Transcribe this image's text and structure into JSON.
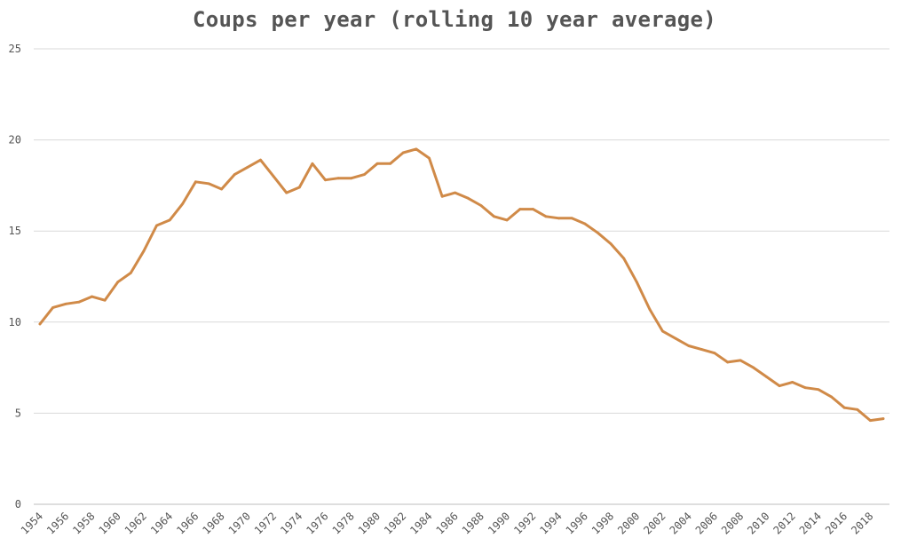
{
  "chart_data": {
    "type": "line",
    "title": "Coups per year (rolling 10 year average)",
    "xlabel": "",
    "ylabel": "",
    "ylim": [
      0,
      25
    ],
    "yticks": [
      0,
      5,
      10,
      15,
      20,
      25
    ],
    "grid": true,
    "legend": "none",
    "color": "#d08a48",
    "x": [
      1954,
      1955,
      1956,
      1957,
      1958,
      1959,
      1960,
      1961,
      1962,
      1963,
      1964,
      1965,
      1966,
      1967,
      1968,
      1969,
      1970,
      1971,
      1972,
      1973,
      1974,
      1975,
      1976,
      1977,
      1978,
      1979,
      1980,
      1981,
      1982,
      1983,
      1984,
      1985,
      1986,
      1987,
      1988,
      1989,
      1990,
      1991,
      1992,
      1993,
      1994,
      1995,
      1996,
      1997,
      1998,
      1999,
      2000,
      2001,
      2002,
      2003,
      2004,
      2005,
      2006,
      2007,
      2008,
      2009,
      2010,
      2011,
      2012,
      2013,
      2014,
      2015,
      2016,
      2017,
      2018,
      2019
    ],
    "xtick_labels": [
      "1954",
      "1956",
      "1958",
      "1960",
      "1962",
      "1964",
      "1966",
      "1968",
      "1970",
      "1972",
      "1974",
      "1976",
      "1978",
      "1980",
      "1982",
      "1984",
      "1986",
      "1988",
      "1990",
      "1992",
      "1994",
      "1996",
      "1998",
      "2000",
      "2002",
      "2004",
      "2006",
      "2008",
      "2010",
      "2012",
      "2014",
      "2016",
      "2018"
    ],
    "series": [
      {
        "values": [
          9.9,
          10.8,
          11.0,
          11.1,
          11.4,
          11.2,
          12.2,
          12.7,
          13.9,
          15.3,
          15.6,
          16.5,
          17.7,
          17.6,
          17.3,
          18.1,
          18.5,
          18.9,
          18.0,
          17.1,
          17.4,
          18.7,
          17.8,
          17.9,
          17.9,
          18.1,
          18.7,
          18.7,
          19.3,
          19.5,
          19.0,
          16.9,
          17.1,
          16.8,
          16.4,
          15.8,
          15.6,
          16.2,
          16.2,
          15.8,
          15.7,
          15.7,
          15.4,
          14.9,
          14.3,
          13.5,
          12.2,
          10.7,
          9.5,
          9.1,
          8.7,
          8.5,
          8.3,
          7.8,
          7.9,
          7.5,
          7.0,
          6.5,
          6.7,
          6.4,
          6.3,
          5.9,
          5.3,
          5.2,
          4.6,
          4.7
        ]
      }
    ]
  }
}
